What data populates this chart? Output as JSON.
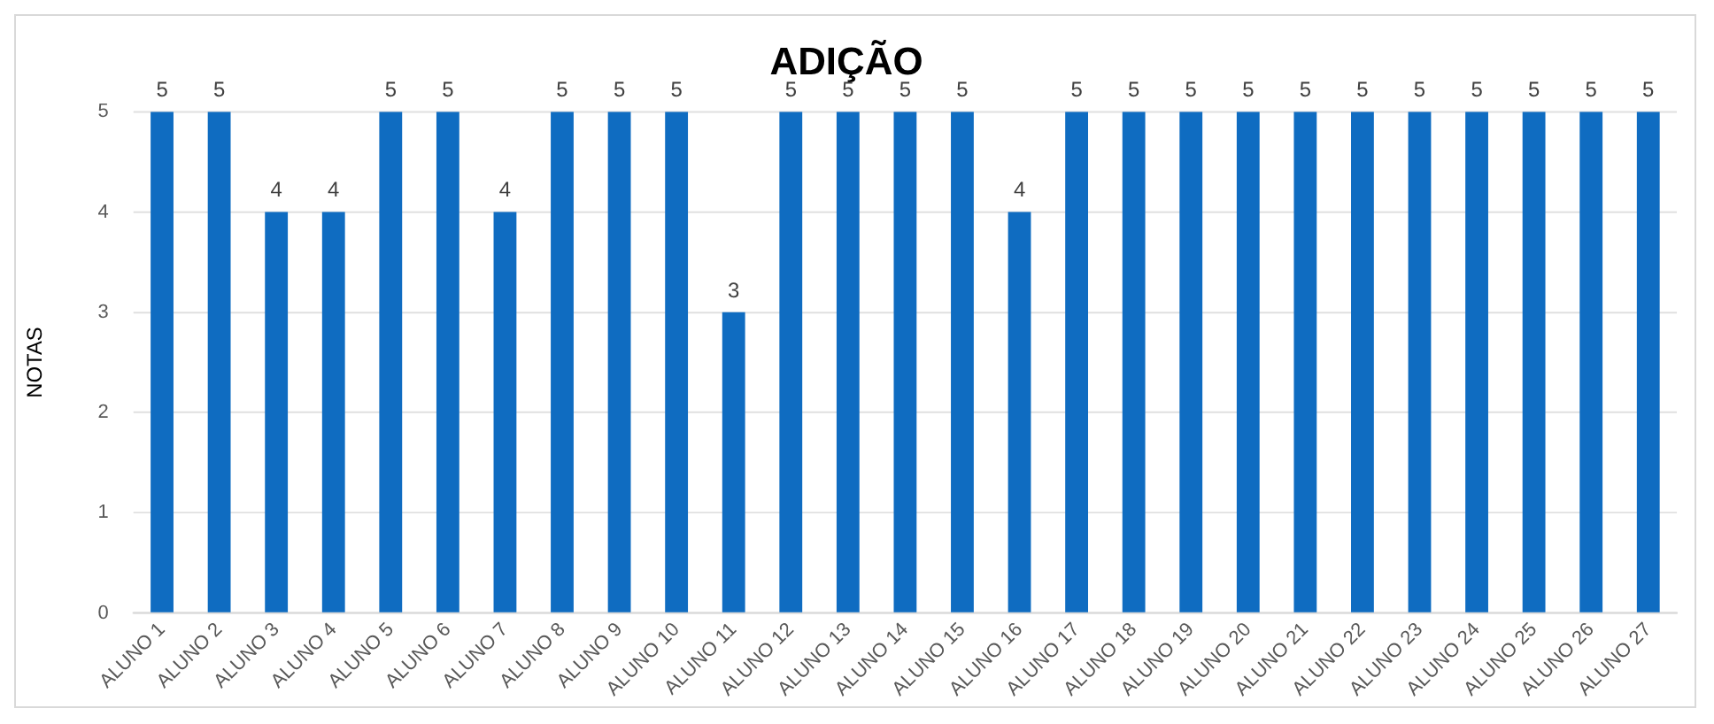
{
  "chart_data": {
    "type": "bar",
    "title": "ADIÇÃO",
    "ylabel": "NOTAS",
    "categories": [
      "ALUNO 1",
      "ALUNO 2",
      "ALUNO 3",
      "ALUNO 4",
      "ALUNO 5",
      "ALUNO 6",
      "ALUNO 7",
      "ALUNO 8",
      "ALUNO 9",
      "ALUNO 10",
      "ALUNO 11",
      "ALUNO 12",
      "ALUNO 13",
      "ALUNO 14",
      "ALUNO 15",
      "ALUNO 16",
      "ALUNO 17",
      "ALUNO 18",
      "ALUNO 19",
      "ALUNO 20",
      "ALUNO 21",
      "ALUNO 22",
      "ALUNO 23",
      "ALUNO 24",
      "ALUNO 25",
      "ALUNO 26",
      "ALUNO 27"
    ],
    "values": [
      5,
      5,
      4,
      4,
      5,
      5,
      4,
      5,
      5,
      5,
      3,
      5,
      5,
      5,
      5,
      4,
      5,
      5,
      5,
      5,
      5,
      5,
      5,
      5,
      5,
      5,
      5
    ],
    "color": "#0f6cc1",
    "ylim": [
      0,
      5
    ],
    "yticks": [
      0,
      1,
      2,
      3,
      4,
      5
    ],
    "grid": "y",
    "data_labels": true
  }
}
